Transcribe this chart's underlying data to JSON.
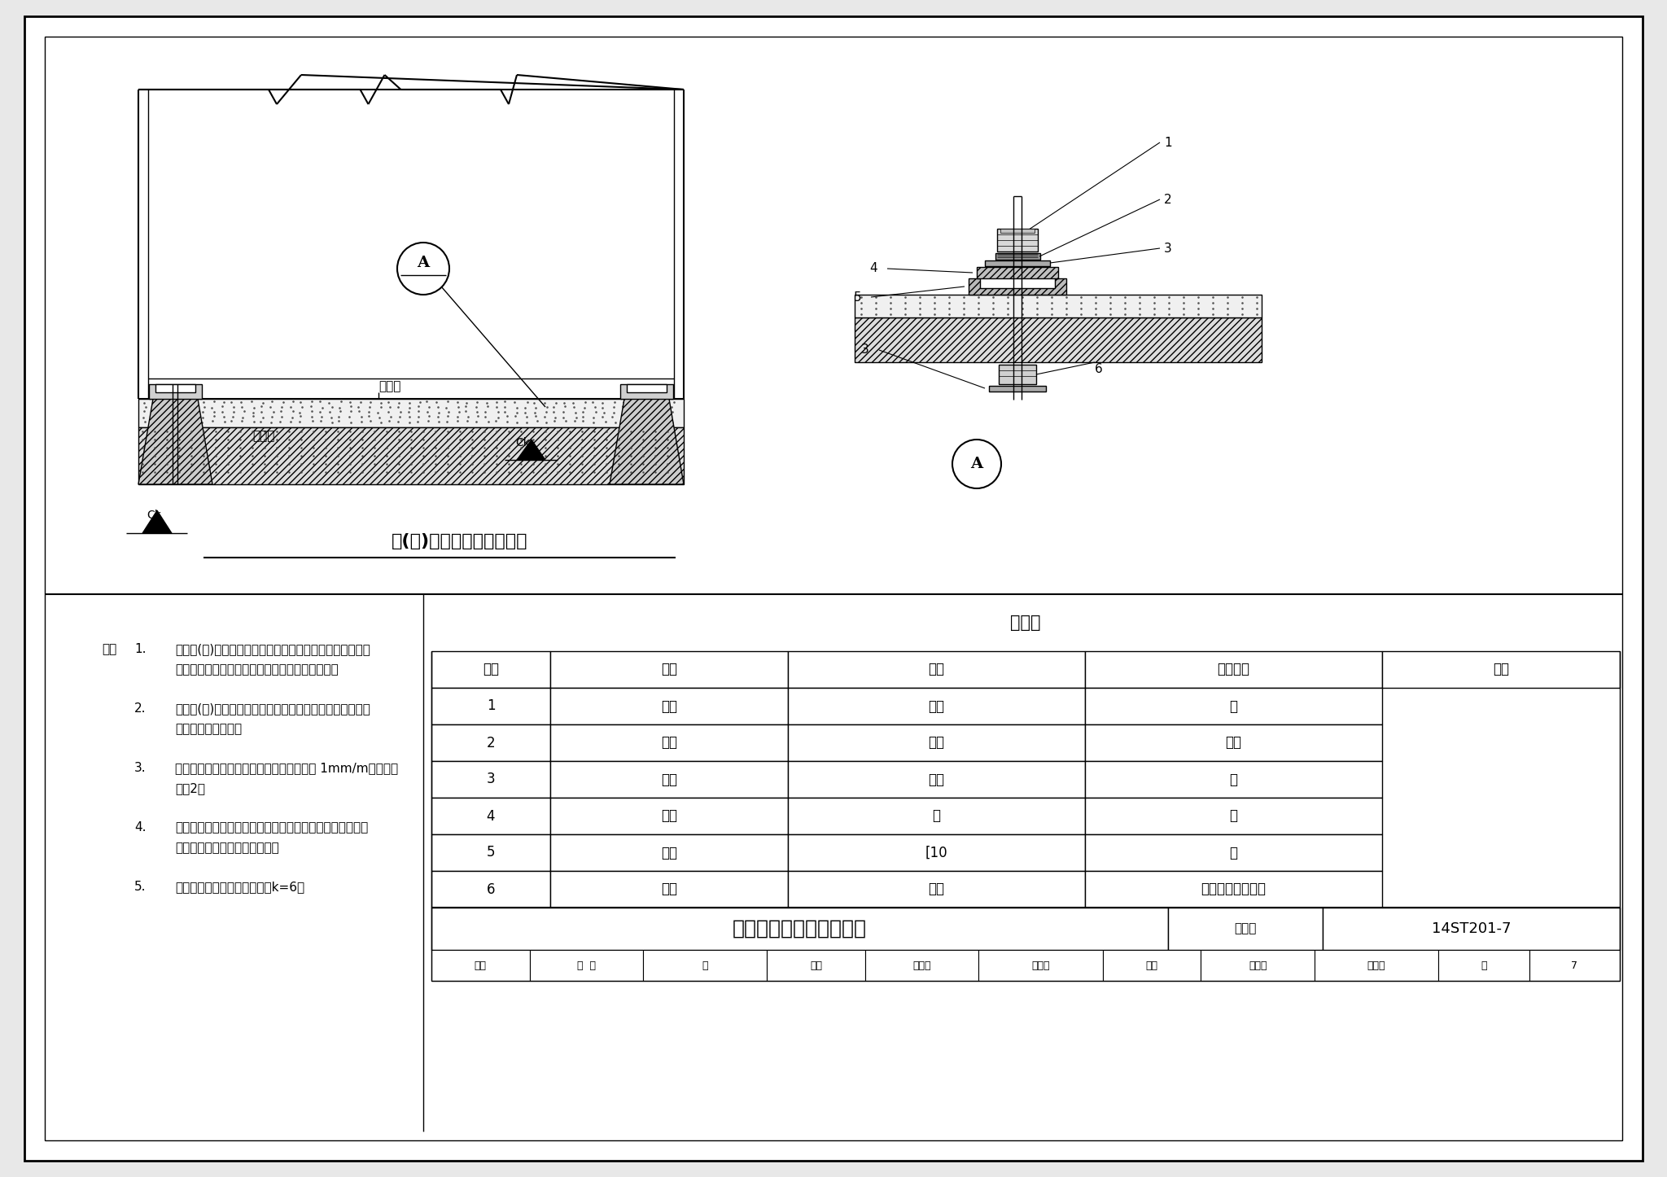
{
  "bg_color": "#e8e8e8",
  "paper_color": "#ffffff",
  "title_main": "变电所设备非绝缘安装图",
  "drawing_title": "柜(屏)非绝缘安装正立面图",
  "fig_collection": "图集号",
  "fig_number": "14ST201-7",
  "notes": [
    [
      "1.",
      "开关柜(屏)安装的金属框架及基础槽钢必须接地良好，可开",
      "启的门与框架的接地端子间应用裸编织铜线连接。"
    ],
    [
      "2.",
      "开关柜(屏)与基础槽钢应用镀锌标准件螺栓连接，且防松零",
      "件齐全，安装牢固。"
    ],
    [
      "3.",
      "安装之前地面必须清洁、水平，水平度最大 1mm/m，全长不",
      "超过2。"
    ],
    [
      "4.",
      "基础预埋件周围的土建装修层施工前，在基础预埋件螺栓安",
      "装位置预留螺栓安装操作空间。"
    ],
    [
      "5.",
      "焊脚尺寸设计无要求时，建议k=6。"
    ]
  ],
  "table_headers": [
    "序号",
    "名称",
    "规格型号",
    "备注"
  ],
  "table_rows": [
    [
      "1",
      "螺母",
      "镀锌",
      "－"
    ],
    [
      "2",
      "弹垫",
      "镀锌",
      "配套"
    ],
    [
      "3",
      "平垫",
      "镀锌",
      "－"
    ],
    [
      "4",
      "柜体",
      "－",
      "－"
    ],
    [
      "5",
      "槽钢",
      "[10",
      "－"
    ],
    [
      "6",
      "螺栓",
      "镀锌",
      "与柜体安装孔配套"
    ]
  ],
  "materials_title": "材料表",
  "audit_items": [
    [
      "审核",
      "王  嘉",
      "茺"
    ],
    [
      "校对",
      "蔡志刚",
      "蔡志刚"
    ],
    [
      "设计",
      "封彬彬",
      "叶博博"
    ]
  ]
}
